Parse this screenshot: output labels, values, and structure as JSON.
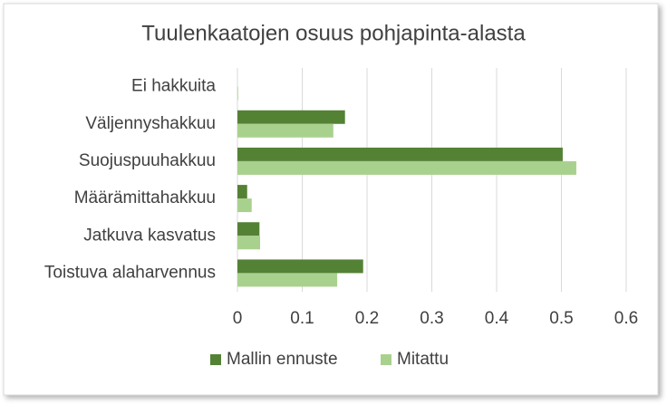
{
  "chart_data": {
    "type": "bar",
    "orientation": "horizontal",
    "title": "Tuulenkaatojen osuus pohjapinta-alasta",
    "categories": [
      "Ei hakkuita",
      "Väljennyshakkuu",
      "Suojuspuuhakkuu",
      "Määrämittahakkuu",
      "Jatkuva kasvatus",
      "Toistuva alaharvennus"
    ],
    "series": [
      {
        "name": "Mallin ennuste",
        "color": "#548235",
        "values": [
          0,
          0.166,
          0.502,
          0.015,
          0.034,
          0.194
        ]
      },
      {
        "name": "Mitattu",
        "color": "#a9d18e",
        "values": [
          0.001,
          0.148,
          0.523,
          0.022,
          0.035,
          0.154
        ]
      }
    ],
    "xlim": [
      0,
      0.6
    ],
    "xticks": [
      0,
      0.1,
      0.2,
      0.3,
      0.4,
      0.5,
      0.6
    ],
    "grid": true,
    "legend": "bottom"
  }
}
